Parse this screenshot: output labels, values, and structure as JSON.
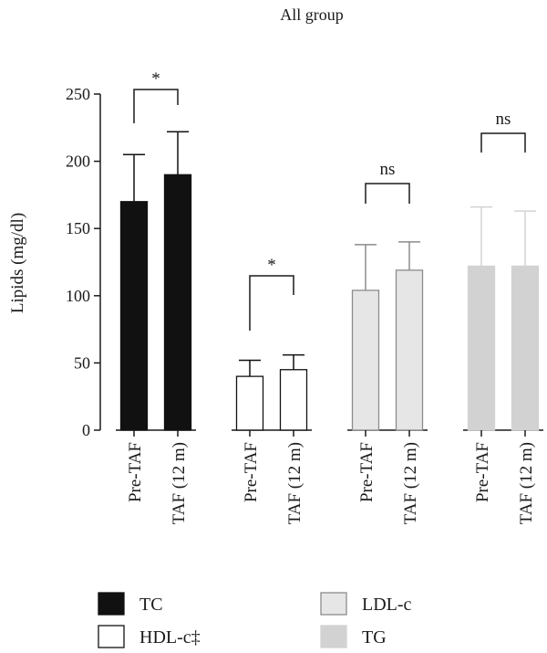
{
  "chart_data": {
    "type": "bar",
    "title": "All group",
    "ylabel": "Lipids (mg/dl)",
    "xlabel": "",
    "ylim": [
      0,
      250
    ],
    "yticks": [
      0,
      50,
      100,
      150,
      200,
      250
    ],
    "grid": false,
    "legend_position": "bottom",
    "categories": [
      "Pre-TAF",
      "TAF (12 m)"
    ],
    "series": [
      {
        "name": "TC",
        "values": [
          170,
          190
        ],
        "errors": [
          205,
          222
        ],
        "fill": "#111111",
        "stroke": "#111111"
      },
      {
        "name": "HDL-c‡",
        "values": [
          40,
          45
        ],
        "errors": [
          52,
          56
        ],
        "fill": "#ffffff",
        "stroke": "#111111"
      },
      {
        "name": "LDL-c",
        "values": [
          104,
          119
        ],
        "errors": [
          138,
          140
        ],
        "fill": "#e6e6e6",
        "stroke": "#8c8c8c"
      },
      {
        "name": "TG",
        "values": [
          122,
          122
        ],
        "errors": [
          166,
          163
        ],
        "fill": "#d2d2d2",
        "stroke": "#d2d2d2"
      }
    ],
    "annotations": [
      "*",
      "*",
      "ns",
      "ns"
    ]
  }
}
